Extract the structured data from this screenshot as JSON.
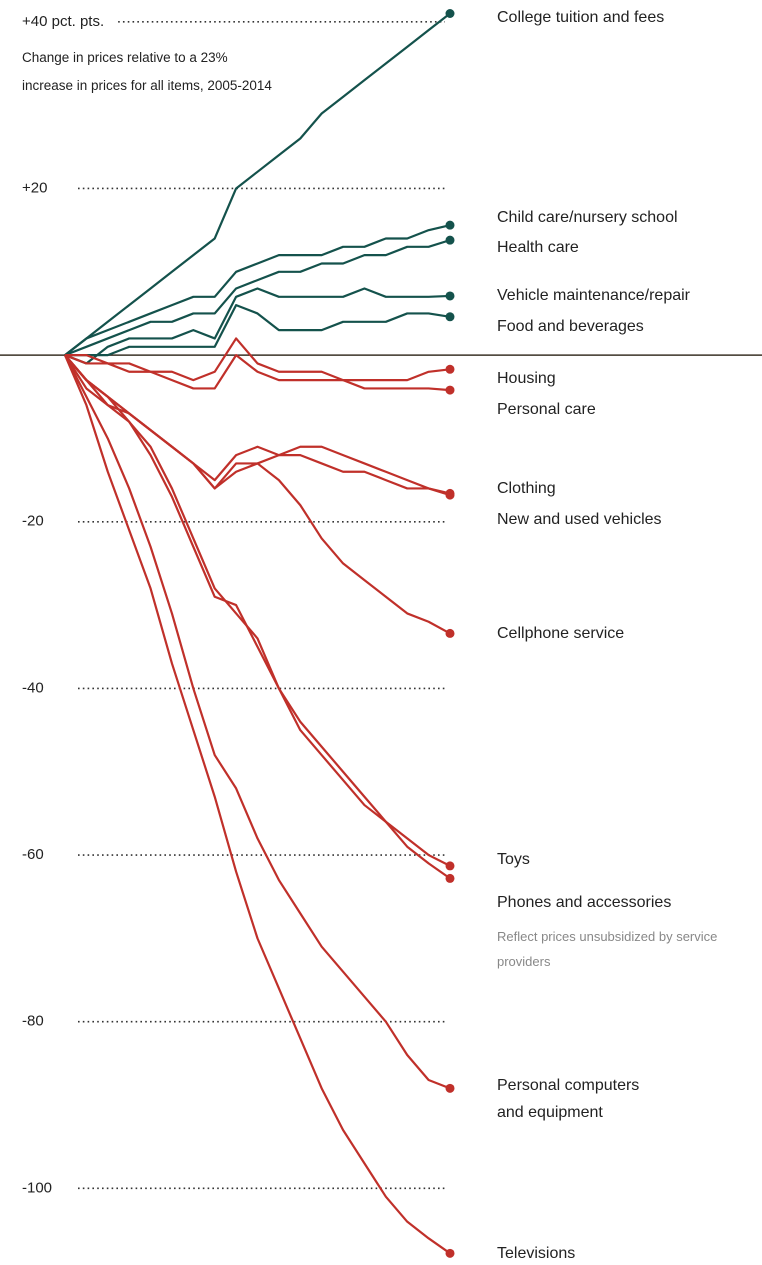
{
  "chart_data": {
    "type": "line",
    "subtitle": "Change in prices relative to a 23% increase in prices for all items, 2005-2014",
    "note": "Reflect prices unsubsidized by service providers",
    "categories": [
      null,
      null,
      null,
      null,
      null,
      null,
      null,
      null,
      null,
      null,
      null,
      null,
      null,
      null,
      null,
      null,
      null,
      null,
      null
    ],
    "ylim": [
      -108,
      41
    ],
    "yticks": [
      {
        "value": 40,
        "label": "+40 pct. pts."
      },
      {
        "value": 20,
        "label": "+20"
      },
      {
        "value": -20,
        "label": "-20"
      },
      {
        "value": -40,
        "label": "-40"
      },
      {
        "value": -60,
        "label": "-60"
      },
      {
        "value": -80,
        "label": "-80"
      },
      {
        "value": -100,
        "label": "-100"
      }
    ],
    "grid": true,
    "series": [
      {
        "name": "College tuition and fees",
        "color": "#14524c",
        "values": [
          0,
          2,
          4,
          6,
          8,
          10,
          12,
          14,
          20,
          22,
          24,
          26,
          29,
          31,
          33,
          35,
          37,
          39,
          41
        ]
      },
      {
        "name": "Child care/nursery school",
        "color": "#14524c",
        "values": [
          0,
          2,
          3,
          4,
          5,
          6,
          7,
          7,
          10,
          11,
          12,
          12,
          12,
          13,
          13,
          14,
          14,
          15,
          15.6
        ]
      },
      {
        "name": "Health care",
        "color": "#14524c",
        "values": [
          0,
          1,
          2,
          3,
          4,
          4,
          5,
          5,
          8,
          9,
          10,
          10,
          11,
          11,
          12,
          12,
          13,
          13,
          13.8
        ]
      },
      {
        "name": "Vehicle maintenance/repair",
        "color": "#14524c",
        "values": [
          0,
          -1,
          1,
          2,
          2,
          2,
          3,
          2,
          7,
          8,
          7,
          7,
          7,
          7,
          8,
          7,
          7,
          7,
          7.1
        ]
      },
      {
        "name": "Food and beverages",
        "color": "#14524c",
        "values": [
          0,
          0,
          0,
          1,
          1,
          1,
          1,
          1,
          6,
          5,
          3,
          3,
          3,
          4,
          4,
          4,
          5,
          5,
          4.6
        ]
      },
      {
        "name": "Housing",
        "color": "#c0302a",
        "values": [
          0,
          0,
          -1,
          -1,
          -2,
          -2,
          -3,
          -2,
          2,
          -1,
          -2,
          -2,
          -2,
          -3,
          -3,
          -3,
          -3,
          -2,
          -1.7
        ]
      },
      {
        "name": "Personal care",
        "color": "#c0302a",
        "values": [
          0,
          -1,
          -1,
          -2,
          -2,
          -3,
          -4,
          -4,
          0,
          -2,
          -3,
          -3,
          -3,
          -3,
          -4,
          -4,
          -4,
          -4,
          -4.2
        ]
      },
      {
        "name": "Clothing",
        "color": "#c0302a",
        "values": [
          0,
          -4,
          -6,
          -7,
          -9,
          -11,
          -13,
          -15,
          -12,
          -11,
          -12,
          -12,
          -13,
          -14,
          -14,
          -15,
          -16,
          -16,
          -16.6
        ]
      },
      {
        "name": "New and used vehicles",
        "color": "#c0302a",
        "values": [
          0,
          -3,
          -5,
          -7,
          -9,
          -11,
          -13,
          -16,
          -14,
          -13,
          -12,
          -11,
          -11,
          -12,
          -13,
          -14,
          -15,
          -16,
          -16.8
        ]
      },
      {
        "name": "Cellphone service",
        "color": "#c0302a",
        "values": [
          0,
          -3,
          -5,
          -7,
          -9,
          -11,
          -13,
          -16,
          -13,
          -13,
          -15,
          -18,
          -22,
          -25,
          -27,
          -29,
          -31,
          -32,
          -33.4
        ]
      },
      {
        "name": "Toys",
        "color": "#c0302a",
        "values": [
          0,
          -3,
          -6,
          -8,
          -11,
          -16,
          -22,
          -28,
          -31,
          -34,
          -40,
          -45,
          -48,
          -51,
          -54,
          -56,
          -58,
          -60,
          -61.3
        ]
      },
      {
        "name": "Phones and accessories",
        "color": "#c0302a",
        "values": [
          0,
          -3,
          -5,
          -8,
          -12,
          -17,
          -23,
          -29,
          -30,
          -35,
          -40,
          -44,
          -47,
          -50,
          -53,
          -56,
          -59,
          -61,
          -62.8
        ]
      },
      {
        "name": "Personal computers and equipment",
        "color": "#c0302a",
        "values": [
          0,
          -5,
          -10,
          -16,
          -23,
          -31,
          -40,
          -48,
          -52,
          -58,
          -63,
          -67,
          -71,
          -74,
          -77,
          -80,
          -84,
          -87,
          -88
        ]
      },
      {
        "name": "Televisions",
        "color": "#c0302a",
        "values": [
          0,
          -6,
          -14,
          -21,
          -28,
          -37,
          -45,
          -53,
          -62,
          -70,
          -76,
          -82,
          -88,
          -93,
          -97,
          -101,
          -104,
          -106,
          -107.8
        ]
      }
    ]
  }
}
